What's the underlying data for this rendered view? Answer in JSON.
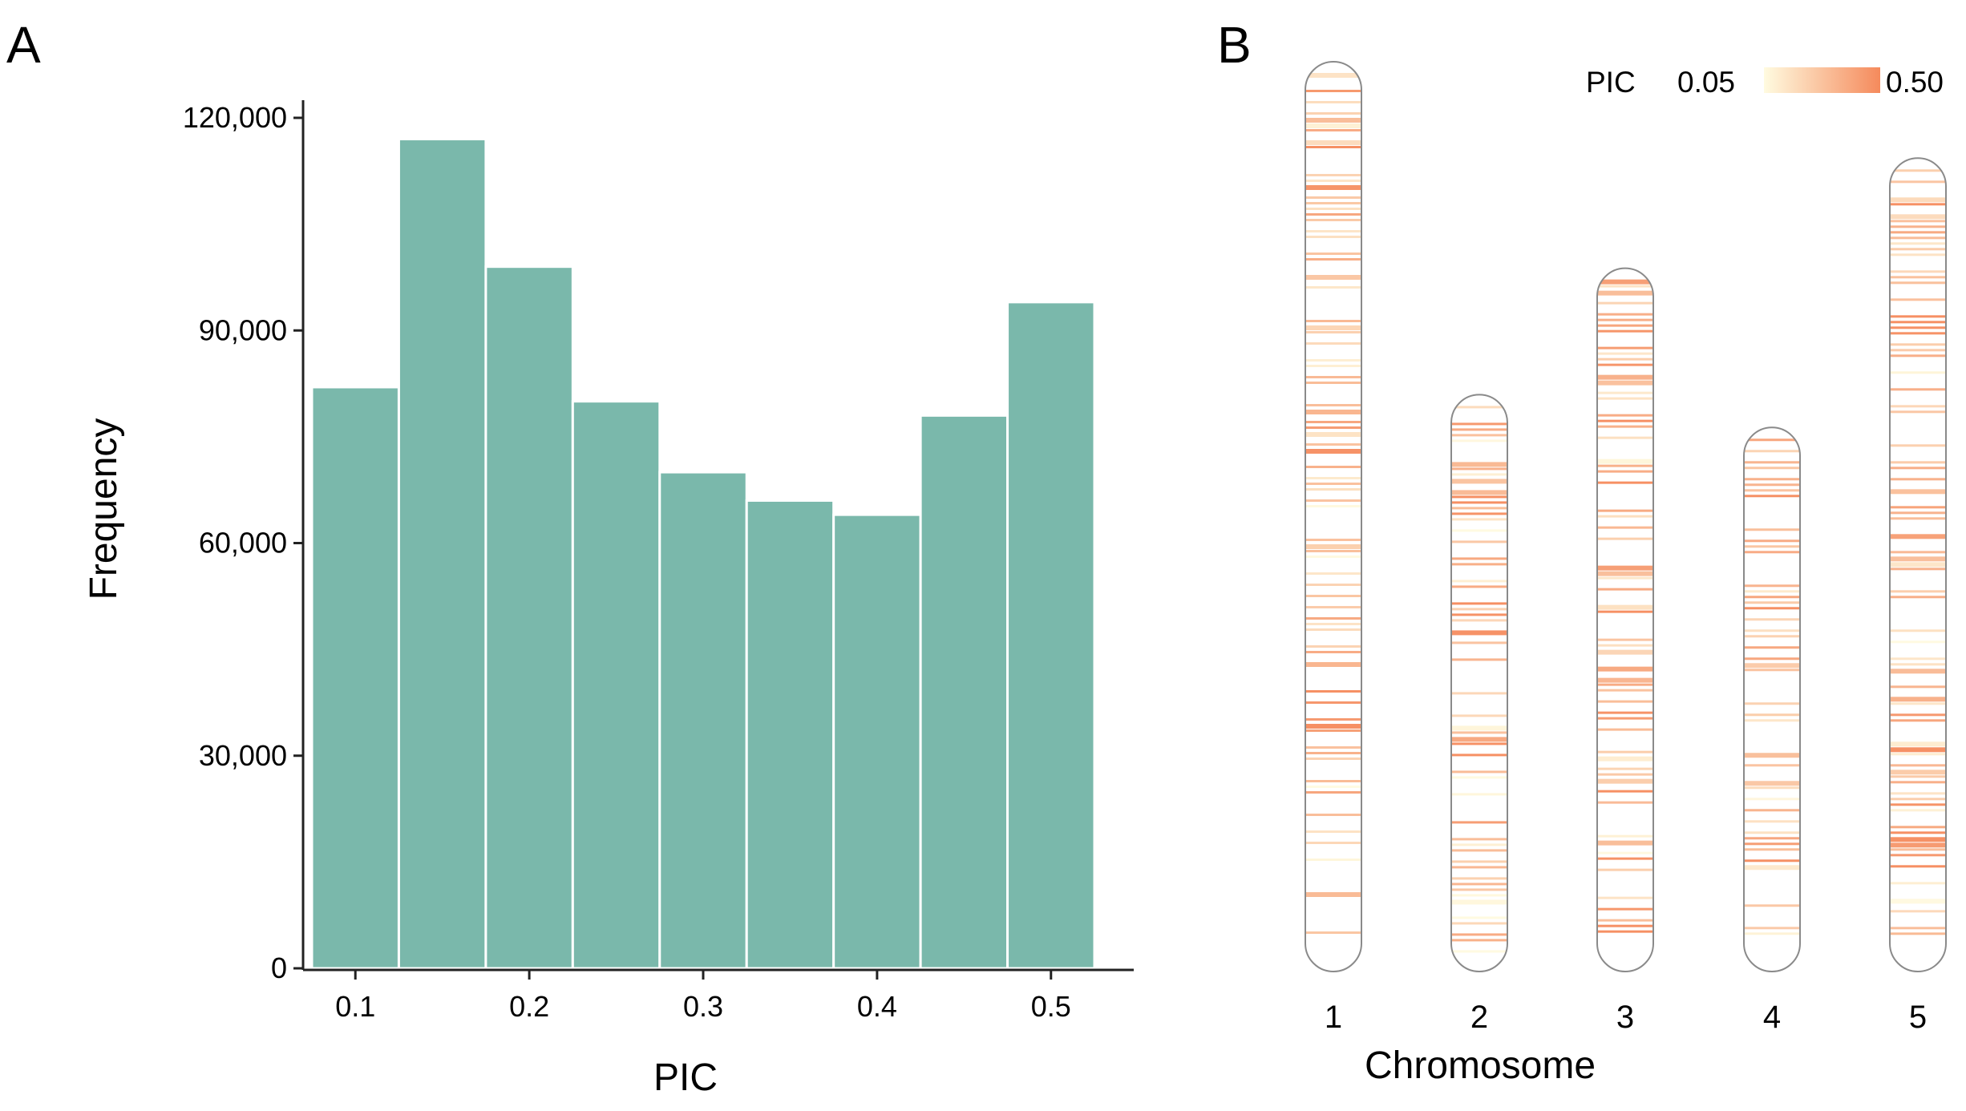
{
  "chart_data": [
    {
      "panel": "A",
      "type": "bar",
      "xlabel": "PIC",
      "ylabel": "Frequency",
      "bin_width": 0.05,
      "bins": [
        {
          "center": 0.1,
          "value": 82000
        },
        {
          "center": 0.15,
          "value": 117000
        },
        {
          "center": 0.2,
          "value": 99000
        },
        {
          "center": 0.25,
          "value": 80000
        },
        {
          "center": 0.3,
          "value": 70000
        },
        {
          "center": 0.35,
          "value": 66000
        },
        {
          "center": 0.4,
          "value": 64000
        },
        {
          "center": 0.45,
          "value": 78000
        },
        {
          "center": 0.5,
          "value": 94000
        }
      ],
      "xlim": [
        0.075,
        0.525
      ],
      "ylim": [
        0,
        120000
      ],
      "x_ticks": [
        {
          "value": 0.1,
          "label": "0.1"
        },
        {
          "value": 0.2,
          "label": "0.2"
        },
        {
          "value": 0.3,
          "label": "0.3"
        },
        {
          "value": 0.4,
          "label": "0.4"
        },
        {
          "value": 0.5,
          "label": "0.5"
        }
      ],
      "y_ticks": [
        {
          "value": 0,
          "label": "0"
        },
        {
          "value": 30000,
          "label": "30,000"
        },
        {
          "value": 60000,
          "label": "60,000"
        },
        {
          "value": 90000,
          "label": "90,000"
        },
        {
          "value": 120000,
          "label": "120,000"
        }
      ],
      "bar_color": "#7ab8ab"
    },
    {
      "panel": "B",
      "type": "heatmap",
      "xlabel": "Chromosome",
      "legend": {
        "title": "PIC",
        "min_label": "0.05",
        "max_label": "0.50",
        "min": 0.05,
        "max": 0.5,
        "color_low": "#fffbe0",
        "color_high": "#f58a5c",
        "position": "top-right"
      },
      "chromosomes": [
        {
          "label": "1",
          "relative_length": 1.0,
          "seed": 11
        },
        {
          "label": "2",
          "relative_length": 0.634,
          "seed": 23
        },
        {
          "label": "3",
          "relative_length": 0.773,
          "seed": 37
        },
        {
          "label": "4",
          "relative_length": 0.598,
          "seed": 41
        },
        {
          "label": "5",
          "relative_length": 0.894,
          "seed": 53
        }
      ],
      "hot_regions": {
        "1": [
          0.37,
          0.74
        ],
        "2": [
          0.18,
          0.4,
          0.63
        ],
        "3": [
          0.13,
          0.65,
          0.93
        ],
        "4": [
          0.2,
          0.4
        ],
        "5": [
          0.2,
          0.45,
          0.84
        ]
      }
    }
  ]
}
